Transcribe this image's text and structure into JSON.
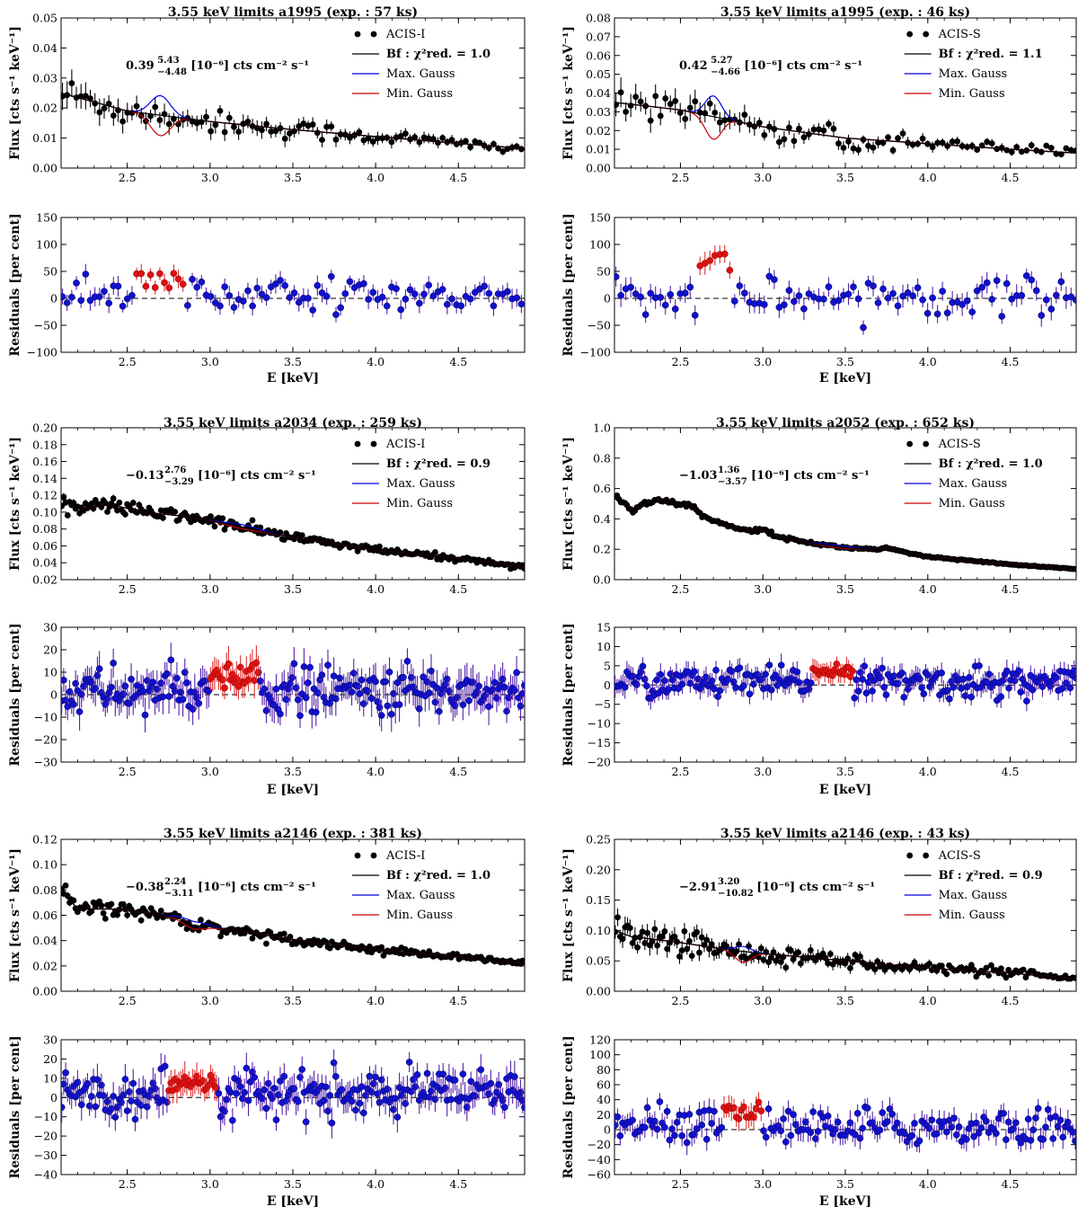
{
  "chart_data": [
    {
      "type": "scatter",
      "panel": "a1995 ACIS-I",
      "title": "3.55 keV limits a1995 (exp. : 57 ks)",
      "legend": [
        "ACIS-I",
        "Bf : χ²red. = 1.0",
        "Max. Gauss",
        "Min. Gauss"
      ],
      "legend_placement": "top-right",
      "annotation": {
        "value": "0.39",
        "sup": "5.43",
        "sub": "−4.48",
        "unit": "[10⁻⁶] cts cm⁻² s⁻¹"
      },
      "xlabel": "E [keV]",
      "xlim": [
        2.1,
        4.9
      ],
      "xticks": [
        2.5,
        3.0,
        3.5,
        4.0,
        4.5
      ],
      "flux": {
        "ylabel": "Flux [cts s⁻¹ keV⁻¹]",
        "ylim": [
          0.0,
          0.05
        ],
        "yticks": [
          0.0,
          0.01,
          0.02,
          0.03,
          0.04,
          0.05
        ],
        "model": {
          "x": [
            2.1,
            2.5,
            3.0,
            3.5,
            4.0,
            4.5,
            4.9
          ],
          "y": [
            0.025,
            0.019,
            0.0155,
            0.0128,
            0.0105,
            0.0082,
            0.0065
          ]
        },
        "line": {
          "center": 2.7,
          "width": 0.06,
          "max_amp": 0.0065,
          "min_amp": -0.0068
        },
        "noise": 0.14,
        "err": 0.2,
        "step": 0.028
      },
      "residuals": {
        "ylabel": "Residuals [per cent]",
        "ylim": [
          -100,
          150
        ],
        "yticks": [
          -100,
          -50,
          0,
          50,
          100,
          150
        ],
        "noise": 19,
        "err": 16,
        "line_peak": 50,
        "highlight": [
          2.55,
          2.85
        ]
      }
    },
    {
      "type": "scatter",
      "panel": "a1995 ACIS-S",
      "title": "3.55 keV limits a1995 (exp. : 46 ks)",
      "legend": [
        "ACIS-S",
        "Bf : χ²red. = 1.1",
        "Max. Gauss",
        "Min. Gauss"
      ],
      "legend_placement": "top-right",
      "annotation": {
        "value": "0.42",
        "sup": "5.27",
        "sub": "−4.66",
        "unit": "[10⁻⁶] cts cm⁻² s⁻¹"
      },
      "xlabel": "E [keV]",
      "xlim": [
        2.1,
        4.9
      ],
      "xticks": [
        2.5,
        3.0,
        3.5,
        4.0,
        4.5
      ],
      "flux": {
        "ylabel": "Flux [cts s⁻¹ keV⁻¹]",
        "ylim": [
          0.0,
          0.08
        ],
        "yticks": [
          0.0,
          0.01,
          0.02,
          0.03,
          0.04,
          0.05,
          0.06,
          0.07,
          0.08
        ],
        "model": {
          "x": [
            2.1,
            2.5,
            3.0,
            3.5,
            4.0,
            4.5,
            4.9
          ],
          "y": [
            0.035,
            0.031,
            0.022,
            0.016,
            0.013,
            0.01,
            0.008
          ]
        },
        "line": {
          "center": 2.7,
          "width": 0.05,
          "max_amp": 0.011,
          "min_amp": -0.012
        },
        "noise": 0.18,
        "err": 0.22,
        "step": 0.03
      },
      "residuals": {
        "ylabel": "Residuals [per cent]",
        "ylim": [
          -100,
          150
        ],
        "yticks": [
          -100,
          -50,
          0,
          50,
          100,
          150
        ],
        "noise": 22,
        "err": 18,
        "line_peak": 90,
        "highlight": [
          2.6,
          2.8
        ]
      }
    },
    {
      "type": "scatter",
      "panel": "a2034 ACIS-I",
      "title": "3.55 keV limits a2034 (exp. : 259 ks)",
      "legend": [
        "ACIS-I",
        "Bf : χ²red. = 0.9",
        "Max. Gauss",
        "Min. Gauss"
      ],
      "legend_placement": "top-right",
      "annotation": {
        "value": "−0.13",
        "sup": "2.76",
        "sub": "−3.29",
        "unit": "[10⁻⁶] cts cm⁻² s⁻¹"
      },
      "xlabel": "E [keV]",
      "xlim": [
        2.1,
        4.9
      ],
      "xticks": [
        2.5,
        3.0,
        3.5,
        4.0,
        4.5
      ],
      "flux": {
        "ylabel": "Flux [cts s⁻¹ keV⁻¹]",
        "ylim": [
          0.02,
          0.2
        ],
        "yticks": [
          0.02,
          0.04,
          0.06,
          0.08,
          0.1,
          0.12,
          0.14,
          0.16,
          0.18,
          0.2
        ],
        "model": {
          "x": [
            2.1,
            2.2,
            2.4,
            2.6,
            2.8,
            3.0,
            3.2,
            3.5,
            4.0,
            4.5,
            4.9
          ],
          "y": [
            0.116,
            0.104,
            0.109,
            0.1,
            0.096,
            0.09,
            0.082,
            0.07,
            0.055,
            0.045,
            0.035
          ]
        },
        "line": {
          "center": 3.2,
          "width": 0.1,
          "max_amp": 0.003,
          "min_amp": -0.002
        },
        "noise": 0.045,
        "err": 0.04,
        "step": 0.012
      },
      "residuals": {
        "ylabel": "Residuals [per cent]",
        "ylim": [
          -30,
          30
        ],
        "yticks": [
          -30,
          -20,
          -10,
          0,
          10,
          20,
          30
        ],
        "noise": 6.5,
        "err": 7,
        "line_peak": 9,
        "highlight": [
          3.0,
          3.3
        ]
      }
    },
    {
      "type": "scatter",
      "panel": "a2052 ACIS-S",
      "title": "3.55 keV limits a2052 (exp. : 652 ks)",
      "legend": [
        "ACIS-S",
        "Bf : χ²red. = 1.0",
        "Max. Gauss",
        "Min. Gauss"
      ],
      "legend_placement": "top-right",
      "annotation": {
        "value": "−1.03",
        "sup": "1.36",
        "sub": "−3.57",
        "unit": "[10⁻⁶] cts cm⁻² s⁻¹"
      },
      "xlabel": "E [keV]",
      "xlim": [
        2.1,
        4.9
      ],
      "xticks": [
        2.5,
        3.0,
        3.5,
        4.0,
        4.5
      ],
      "flux": {
        "ylabel": "Flux [cts s⁻¹ keV⁻¹]",
        "ylim": [
          0.0,
          1.0
        ],
        "yticks": [
          0.0,
          0.2,
          0.4,
          0.6,
          0.8,
          1.0
        ],
        "model": {
          "x": [
            2.1,
            2.2,
            2.35,
            2.5,
            2.55,
            2.65,
            2.8,
            2.95,
            3.0,
            3.1,
            3.3,
            3.5,
            3.7,
            3.75,
            3.85,
            4.0,
            4.5,
            4.9
          ],
          "y": [
            0.56,
            0.46,
            0.53,
            0.49,
            0.5,
            0.41,
            0.35,
            0.32,
            0.33,
            0.28,
            0.24,
            0.21,
            0.2,
            0.21,
            0.18,
            0.15,
            0.1,
            0.07
          ]
        },
        "line": {
          "center": 3.45,
          "width": 0.1,
          "max_amp": 0.01,
          "min_amp": -0.006
        },
        "noise": 0.02,
        "err": 0.02,
        "step": 0.012
      },
      "residuals": {
        "ylabel": "Residuals [per cent]",
        "ylim": [
          -20,
          15
        ],
        "yticks": [
          -20,
          -15,
          -10,
          -5,
          0,
          5,
          10,
          15
        ],
        "noise": 2.5,
        "err": 2.5,
        "line_peak": 3.5,
        "highlight": [
          3.3,
          3.55
        ]
      }
    },
    {
      "type": "scatter",
      "panel": "a2146 ACIS-I",
      "title": "3.55 keV limits a2146 (exp. : 381 ks)",
      "legend": [
        "ACIS-I",
        "Bf : χ²red. = 1.0",
        "Max. Gauss",
        "Min. Gauss"
      ],
      "legend_placement": "top-right",
      "annotation": {
        "value": "−0.38",
        "sup": "2.24",
        "sub": "−3.11",
        "unit": "[10⁻⁶] cts cm⁻² s⁻¹"
      },
      "xlabel": "E [keV]",
      "xlim": [
        2.1,
        4.9
      ],
      "xticks": [
        2.5,
        3.0,
        3.5,
        4.0,
        4.5
      ],
      "flux": {
        "ylabel": "Flux [cts s⁻¹ keV⁻¹]",
        "ylim": [
          0.0,
          0.12
        ],
        "yticks": [
          0.0,
          0.02,
          0.04,
          0.06,
          0.08,
          0.1,
          0.12
        ],
        "model": {
          "x": [
            2.1,
            2.2,
            2.4,
            2.6,
            2.8,
            2.9,
            3.0,
            3.2,
            3.5,
            4.0,
            4.5,
            4.9
          ],
          "y": [
            0.08,
            0.065,
            0.065,
            0.062,
            0.058,
            0.052,
            0.051,
            0.047,
            0.041,
            0.033,
            0.027,
            0.022
          ]
        },
        "line": {
          "center": 2.9,
          "width": 0.08,
          "max_amp": 0.003,
          "min_amp": -0.003
        },
        "noise": 0.05,
        "err": 0.04,
        "step": 0.012
      },
      "residuals": {
        "ylabel": "Residuals [per cent]",
        "ylim": [
          -40,
          30
        ],
        "yticks": [
          -40,
          -30,
          -20,
          -10,
          0,
          10,
          20,
          30
        ],
        "noise": 7,
        "err": 7,
        "line_peak": 8,
        "highlight": [
          2.75,
          3.05
        ]
      }
    },
    {
      "type": "scatter",
      "panel": "a2146 ACIS-S",
      "title": "3.55 keV limits a2146 (exp. : 43 ks)",
      "legend": [
        "ACIS-S",
        "Bf : χ²red. = 0.9",
        "Max. Gauss",
        "Min. Gauss"
      ],
      "legend_placement": "top-right",
      "annotation": {
        "value": "−2.91",
        "sup": "3.20",
        "sub": "−10.82",
        "unit": "[10⁻⁶] cts cm⁻² s⁻¹"
      },
      "xlabel": "E [keV]",
      "xlim": [
        2.1,
        4.9
      ],
      "xticks": [
        2.5,
        3.0,
        3.5,
        4.0,
        4.5
      ],
      "flux": {
        "ylabel": "Flux [cts s⁻¹ keV⁻¹]",
        "ylim": [
          0.0,
          0.25
        ],
        "yticks": [
          0.0,
          0.05,
          0.1,
          0.15,
          0.2,
          0.25
        ],
        "model": {
          "x": [
            2.1,
            2.2,
            2.5,
            2.8,
            3.0,
            3.5,
            4.0,
            4.5,
            4.9
          ],
          "y": [
            0.1,
            0.09,
            0.08,
            0.068,
            0.062,
            0.05,
            0.038,
            0.03,
            0.02
          ]
        },
        "line": {
          "center": 2.88,
          "width": 0.05,
          "max_amp": 0.008,
          "min_amp": -0.018
        },
        "noise": 0.14,
        "err": 0.18,
        "step": 0.015
      },
      "residuals": {
        "ylabel": "Residuals [per cent]",
        "ylim": [
          -60,
          120
        ],
        "yticks": [
          -60,
          -40,
          -20,
          0,
          20,
          40,
          60,
          80,
          100,
          120
        ],
        "noise": 15,
        "err": 14,
        "line_peak": 30,
        "highlight": [
          2.75,
          3.0
        ]
      }
    }
  ]
}
